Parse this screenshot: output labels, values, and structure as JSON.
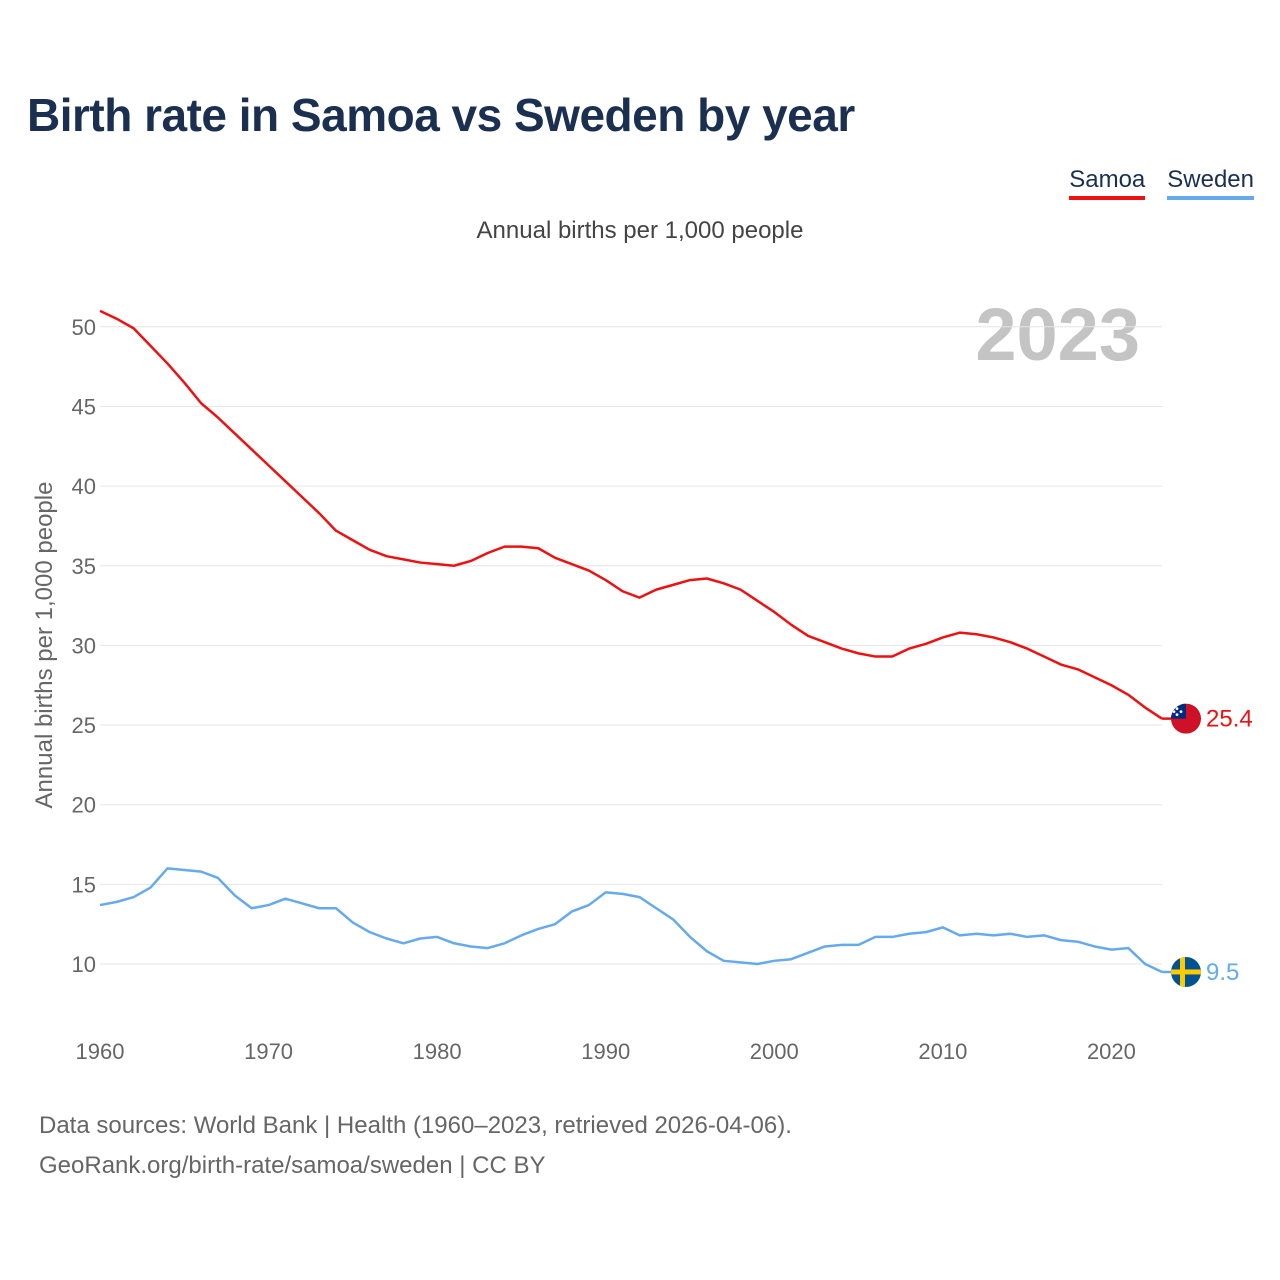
{
  "title": "Birth rate in Samoa vs Sweden by year",
  "subtitle": "Annual births per 1,000 people",
  "legend": [
    {
      "label": "Samoa",
      "color": "#ee1111"
    },
    {
      "label": "Sweden",
      "color": "#66aaee"
    }
  ],
  "year_label": "2023",
  "footer": {
    "source": "Data sources: World Bank | Health (1960–2023, retrieved 2026-04-06).",
    "credit": "GeoRank.org/birth-rate/samoa/sweden | CC BY"
  },
  "chart_data": {
    "type": "line",
    "title": "Birth rate in Samoa vs Sweden by year",
    "xlabel": "",
    "ylabel": "Annual births per 1,000 people",
    "xlim": [
      1960,
      2023
    ],
    "ylim": [
      7,
      52
    ],
    "y_ticks": [
      10,
      15,
      20,
      25,
      30,
      35,
      40,
      45,
      50
    ],
    "x_ticks": [
      1960,
      1970,
      1980,
      1990,
      2000,
      2010,
      2020
    ],
    "grid": true,
    "legend_position": "top-right",
    "x": [
      1960,
      1961,
      1962,
      1963,
      1964,
      1965,
      1966,
      1967,
      1968,
      1969,
      1970,
      1971,
      1972,
      1973,
      1974,
      1975,
      1976,
      1977,
      1978,
      1979,
      1980,
      1981,
      1982,
      1983,
      1984,
      1985,
      1986,
      1987,
      1988,
      1989,
      1990,
      1991,
      1992,
      1993,
      1994,
      1995,
      1996,
      1997,
      1998,
      1999,
      2000,
      2001,
      2002,
      2003,
      2004,
      2005,
      2006,
      2007,
      2008,
      2009,
      2010,
      2011,
      2012,
      2013,
      2014,
      2015,
      2016,
      2017,
      2018,
      2019,
      2020,
      2021,
      2022,
      2023
    ],
    "series": [
      {
        "name": "Samoa",
        "color": "#ee1111",
        "end_label": "25.4",
        "values": [
          51.0,
          50.5,
          49.9,
          48.8,
          47.7,
          46.5,
          45.2,
          44.3,
          43.3,
          42.3,
          41.3,
          40.3,
          39.3,
          38.3,
          37.2,
          36.6,
          36.0,
          35.6,
          35.4,
          35.2,
          35.1,
          35.0,
          35.3,
          35.8,
          36.2,
          36.2,
          36.1,
          35.5,
          35.1,
          34.7,
          34.1,
          33.4,
          33.0,
          33.5,
          33.8,
          34.1,
          34.2,
          33.9,
          33.5,
          32.8,
          32.1,
          31.3,
          30.6,
          30.2,
          29.8,
          29.5,
          29.3,
          29.3,
          29.8,
          30.1,
          30.5,
          30.8,
          30.7,
          30.5,
          30.2,
          29.8,
          29.3,
          28.8,
          28.5,
          28.0,
          27.5,
          26.9,
          26.1,
          25.4
        ]
      },
      {
        "name": "Sweden",
        "color": "#66aaee",
        "end_label": "9.5",
        "values": [
          13.7,
          13.9,
          14.2,
          14.8,
          16.0,
          15.9,
          15.8,
          15.4,
          14.3,
          13.5,
          13.7,
          14.1,
          13.8,
          13.5,
          13.5,
          12.6,
          12.0,
          11.6,
          11.3,
          11.6,
          11.7,
          11.3,
          11.1,
          11.0,
          11.3,
          11.8,
          12.2,
          12.5,
          13.3,
          13.7,
          14.5,
          14.4,
          14.2,
          13.5,
          12.8,
          11.7,
          10.8,
          10.2,
          10.1,
          10.0,
          10.2,
          10.3,
          10.7,
          11.1,
          11.2,
          11.2,
          11.7,
          11.7,
          11.9,
          12.0,
          12.3,
          11.8,
          11.9,
          11.8,
          11.9,
          11.7,
          11.8,
          11.5,
          11.4,
          11.1,
          10.9,
          11.0,
          10.0,
          9.5
        ]
      }
    ]
  }
}
